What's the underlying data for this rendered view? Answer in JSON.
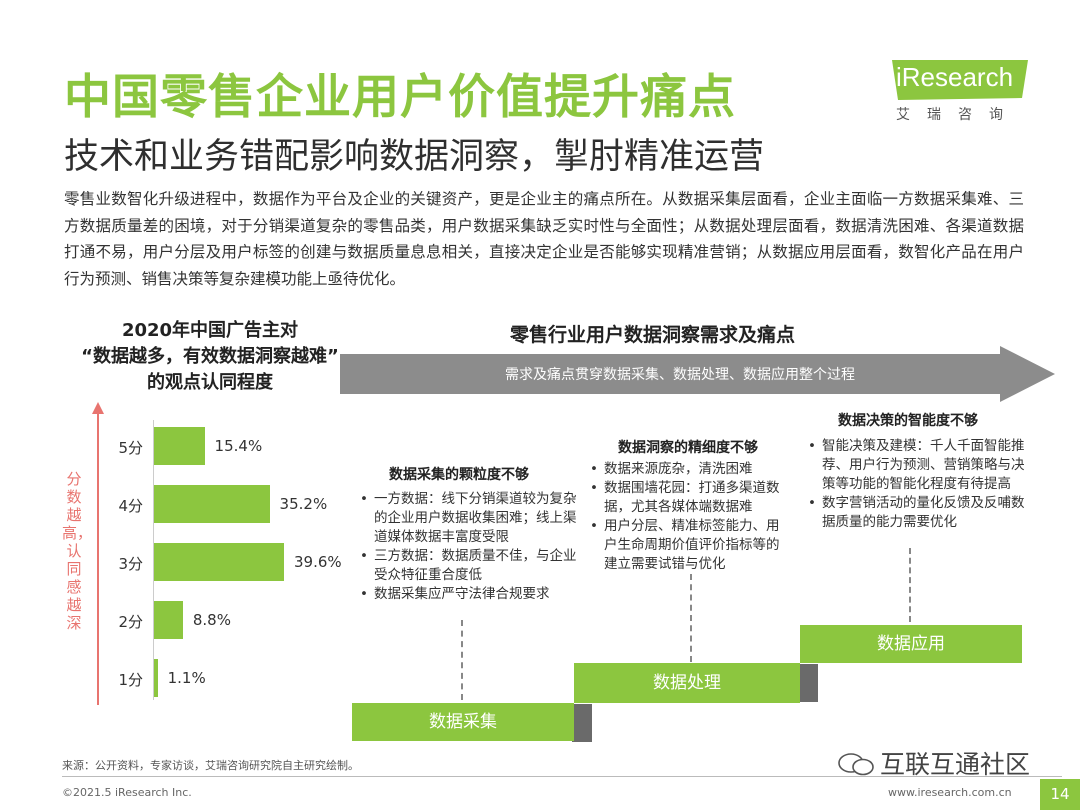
{
  "header": {
    "title": "中国零售企业用户价值提升痛点",
    "subtitle": "技术和业务错配影响数据洞察，掣肘精准运营",
    "logo_text": "iResearch",
    "logo_cn": "艾瑞咨询"
  },
  "intro": "零售业数智化升级进程中，数据作为平台及企业的关键资产，更是企业主的痛点所在。从数据采集层面看，企业主面临一方数据采集难、三方数据质量差的困境，对于分销渠道复杂的零售品类，用户数据采集缺乏实时性与全面性；从数据处理层面看，数据清洗困难、各渠道数据打通不易，用户分层及用户标签的创建与数据质量息息相关，直接决定企业是否能够实现精准营销；从数据应用层面看，数智化产品在用户行为预测、销售决策等复杂建模功能上亟待优化。",
  "chart_data": {
    "type": "bar",
    "orientation": "horizontal",
    "title": "2020年中国广告主对“数据越多，有效数据洞察越难”的观点认同程度",
    "title_lines": [
      "2020年中国广告主对",
      "“数据越多，有效数据洞察越难”",
      "的观点认同程度"
    ],
    "ylabel": "分数越高，认同感越深",
    "categories": [
      "5分",
      "4分",
      "3分",
      "2分",
      "1分"
    ],
    "values": [
      15.4,
      35.2,
      39.6,
      8.8,
      1.1
    ],
    "value_labels": [
      "15.4%",
      "35.2%",
      "39.6%",
      "8.8%",
      "1.1%"
    ],
    "xlim": [
      0,
      45
    ],
    "color": "#8cc63f"
  },
  "process": {
    "title": "零售行业用户数据洞察需求及痛点",
    "arrow_text": "需求及痛点贯穿数据采集、数据处理、数据应用整个过程",
    "stages": [
      {
        "title": "数据采集的颗粒度不够",
        "bullets": [
          "一方数据：线下分销渠道较为复杂的企业用户数据收集困难；线上渠道媒体数据丰富度受限",
          "三方数据：数据质量不佳，与企业受众特征重合度低",
          "数据采集应严守法律合规要求"
        ],
        "step_label": "数据采集"
      },
      {
        "title": "数据洞察的精细度不够",
        "bullets": [
          "数据来源庞杂，清洗困难",
          "数据围墙花园：打通多渠道数据，尤其各媒体端数据难",
          "用户分层、精准标签能力、用户生命周期价值评价指标等的建立需要试错与优化"
        ],
        "step_label": "数据处理"
      },
      {
        "title": "数据决策的智能度不够",
        "bullets": [
          "智能决策及建模：千人千面智能推荐、用户行为预测、营销策略与决策等功能的智能化程度有待提高",
          "数字营销活动的量化反馈及反哺数据质量的能力需要优化"
        ],
        "step_label": "数据应用"
      }
    ]
  },
  "footer": {
    "source": "来源：公开资料，专家访谈，艾瑞咨询研究院自主研究绘制。",
    "copyright": "©2021.5 iResearch Inc.",
    "site": "www.iresearch.com.cn",
    "page": "14",
    "watermark": "互联互通社区"
  },
  "colors": {
    "accent": "#8cc63f",
    "arrow": "#8c8c8c",
    "axis_label": "#e8746f"
  }
}
